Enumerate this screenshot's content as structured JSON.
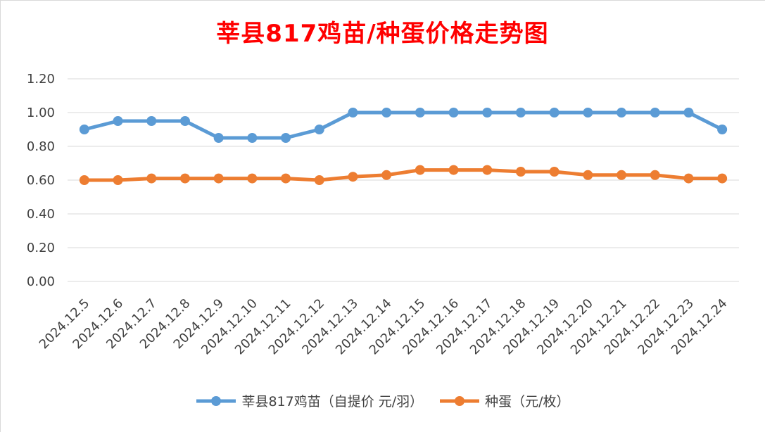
{
  "chart_data": {
    "type": "line",
    "title": "莘县817鸡苗/种蛋价格走势图",
    "categories": [
      "2024.12.5",
      "2024.12.6",
      "2024.12.7",
      "2024.12.8",
      "2024.12.9",
      "2024.12.10",
      "2024.12.11",
      "2024.12.12",
      "2024.12.13",
      "2024.12.14",
      "2024.12.15",
      "2024.12.16",
      "2024.12.17",
      "2024.12.18",
      "2024.12.19",
      "2024.12.20",
      "2024.12.21",
      "2024.12.22",
      "2024.12.23",
      "2024.12.24"
    ],
    "series": [
      {
        "name": "莘县817鸡苗（自提价 元/羽）",
        "color": "#5b9bd5",
        "values": [
          0.9,
          0.95,
          0.95,
          0.95,
          0.85,
          0.85,
          0.85,
          0.9,
          1.0,
          1.0,
          1.0,
          1.0,
          1.0,
          1.0,
          1.0,
          1.0,
          1.0,
          1.0,
          1.0,
          0.9
        ]
      },
      {
        "name": "种蛋（元/枚）",
        "color": "#ed7d31",
        "values": [
          0.6,
          0.6,
          0.61,
          0.61,
          0.61,
          0.61,
          0.61,
          0.6,
          0.62,
          0.63,
          0.66,
          0.66,
          0.66,
          0.65,
          0.65,
          0.63,
          0.63,
          0.63,
          0.61,
          0.61
        ]
      }
    ],
    "ylim": [
      0,
      1.2
    ],
    "yticks": [
      "0.00",
      "0.20",
      "0.40",
      "0.60",
      "0.80",
      "1.00",
      "1.20"
    ],
    "grid": true,
    "legend": "bottom"
  }
}
